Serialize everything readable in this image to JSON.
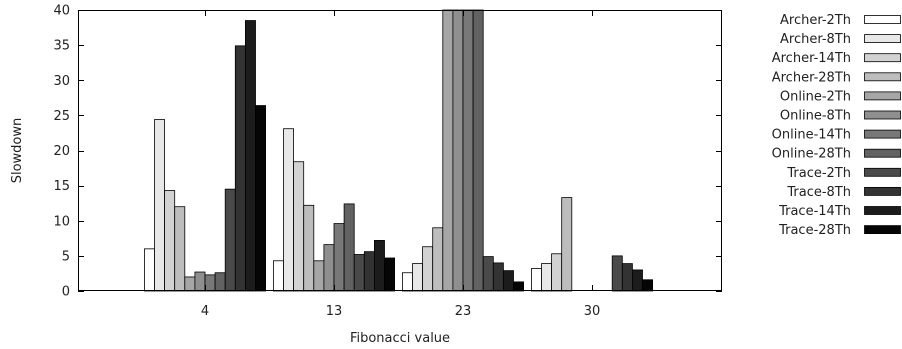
{
  "chart_data": {
    "type": "bar",
    "xlabel": "Fibonacci value",
    "ylabel": "Slowdown",
    "ylim": [
      0,
      40
    ],
    "yticks": [
      0,
      5,
      10,
      15,
      20,
      25,
      30,
      35,
      40
    ],
    "grid": false,
    "legend_placement": "right",
    "categories": [
      "4",
      "13",
      "23",
      "30"
    ],
    "series": [
      {
        "name": "Archer-2Th",
        "color": "#ffffff",
        "values": [
          6.0,
          4.3,
          2.6,
          3.2
        ]
      },
      {
        "name": "Archer-8Th",
        "color": "#e8e8e8",
        "values": [
          24.4,
          23.1,
          3.9,
          3.9
        ]
      },
      {
        "name": "Archer-14Th",
        "color": "#d2d2d2",
        "values": [
          14.3,
          18.4,
          6.3,
          5.3
        ]
      },
      {
        "name": "Archer-28Th",
        "color": "#bdbdbd",
        "values": [
          12.0,
          12.2,
          9.0,
          13.3
        ]
      },
      {
        "name": "Online-2Th",
        "color": "#a6a6a6",
        "values": [
          2.0,
          4.3,
          40.0,
          0
        ]
      },
      {
        "name": "Online-8Th",
        "color": "#8f8f8f",
        "values": [
          2.7,
          6.6,
          40.0,
          0
        ]
      },
      {
        "name": "Online-14Th",
        "color": "#787878",
        "values": [
          2.3,
          9.6,
          40.0,
          0
        ]
      },
      {
        "name": "Online-28Th",
        "color": "#626262",
        "values": [
          2.6,
          12.4,
          40.0,
          0
        ]
      },
      {
        "name": "Trace-2Th",
        "color": "#4a4a4a",
        "values": [
          14.5,
          5.2,
          4.9,
          5.0
        ]
      },
      {
        "name": "Trace-8Th",
        "color": "#333333",
        "values": [
          34.9,
          5.6,
          4.0,
          3.9
        ]
      },
      {
        "name": "Trace-14Th",
        "color": "#1c1c1c",
        "values": [
          38.5,
          7.2,
          2.9,
          3.0
        ]
      },
      {
        "name": "Trace-28Th",
        "color": "#050505",
        "values": [
          26.4,
          4.7,
          1.3,
          1.6
        ]
      }
    ]
  }
}
